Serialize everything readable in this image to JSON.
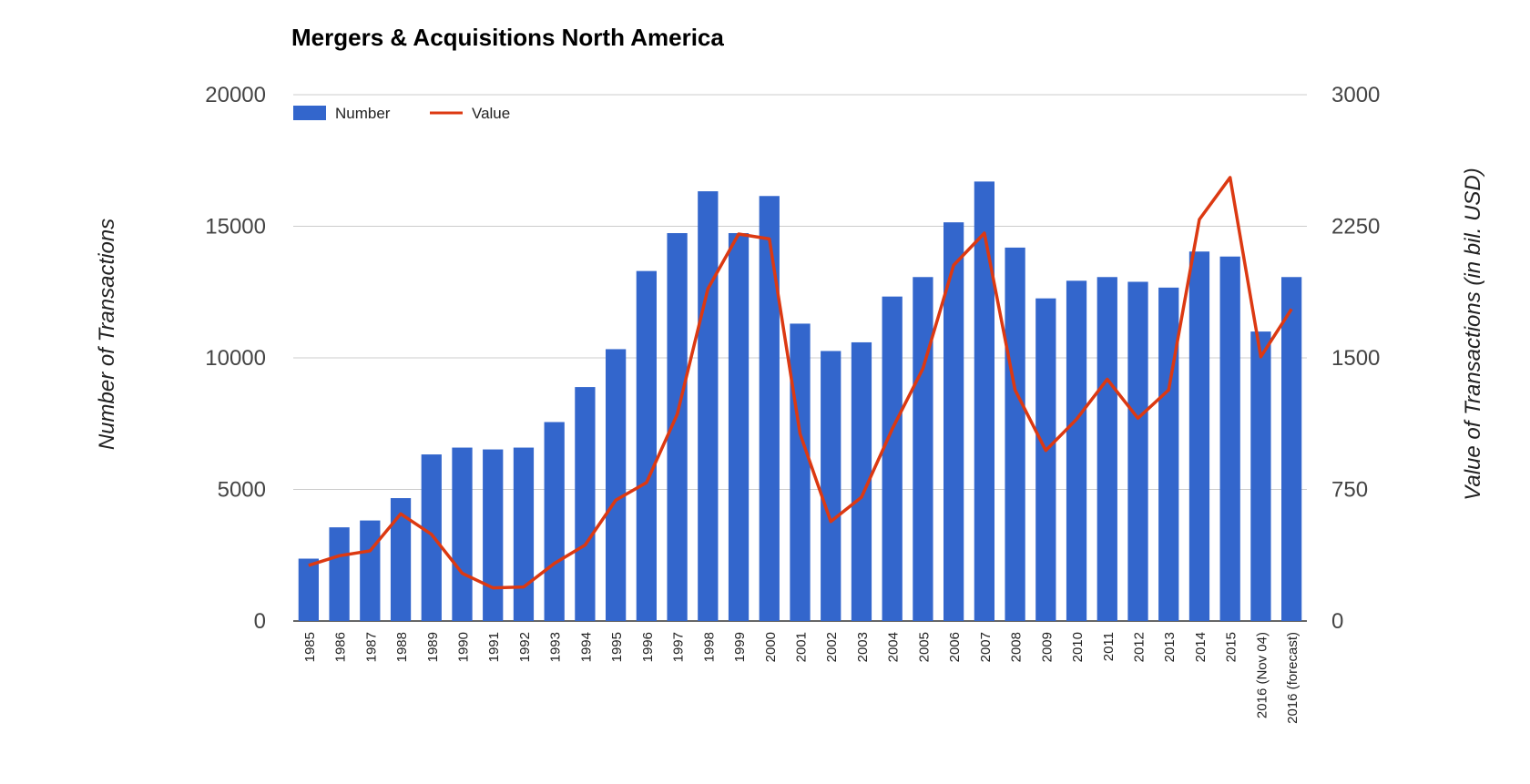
{
  "chart_data": {
    "type": "bar+line",
    "title": "Mergers & Acquisitions North America",
    "ylabel_left": "Number of Transactions",
    "ylabel_right": "Value of Transactions (in bil. USD)",
    "ylim_left": [
      0,
      20000
    ],
    "ylim_right": [
      0,
      3000
    ],
    "yticks_left": [
      "0",
      "5000",
      "10000",
      "15000",
      "20000"
    ],
    "yticks_right": [
      "0",
      "750",
      "1500",
      "2250",
      "3000"
    ],
    "grid": true,
    "legend_position": "top-left",
    "categories": [
      "1985",
      "1986",
      "1987",
      "1988",
      "1989",
      "1990",
      "1991",
      "1992",
      "1993",
      "1994",
      "1995",
      "1996",
      "1997",
      "1998",
      "1999",
      "2000",
      "2001",
      "2002",
      "2003",
      "2004",
      "2005",
      "2006",
      "2007",
      "2008",
      "2009",
      "2010",
      "2011",
      "2012",
      "2013",
      "2014",
      "2015",
      "2016 (Nov 04)",
      "2016 (forecast)"
    ],
    "series": [
      {
        "name": "Number",
        "type": "bar",
        "axis": "left",
        "color": "#3366cc",
        "values": [
          2370,
          3560,
          3820,
          4670,
          6330,
          6590,
          6520,
          6590,
          7560,
          8890,
          10330,
          13300,
          14740,
          16330,
          14740,
          16150,
          11300,
          10260,
          10590,
          12330,
          13070,
          15150,
          16700,
          14190,
          12260,
          12930,
          13070,
          12890,
          12670,
          14040,
          13850,
          11000,
          13070
        ]
      },
      {
        "name": "Value",
        "type": "line",
        "axis": "right",
        "color": "#dc3912",
        "values": [
          317,
          372,
          400,
          611,
          494,
          272,
          189,
          194,
          328,
          433,
          689,
          789,
          1178,
          1894,
          2206,
          2178,
          1067,
          567,
          706,
          1094,
          1439,
          2028,
          2211,
          1317,
          972,
          1150,
          1378,
          1156,
          1317,
          2289,
          2528,
          1506,
          1778
        ]
      }
    ]
  }
}
